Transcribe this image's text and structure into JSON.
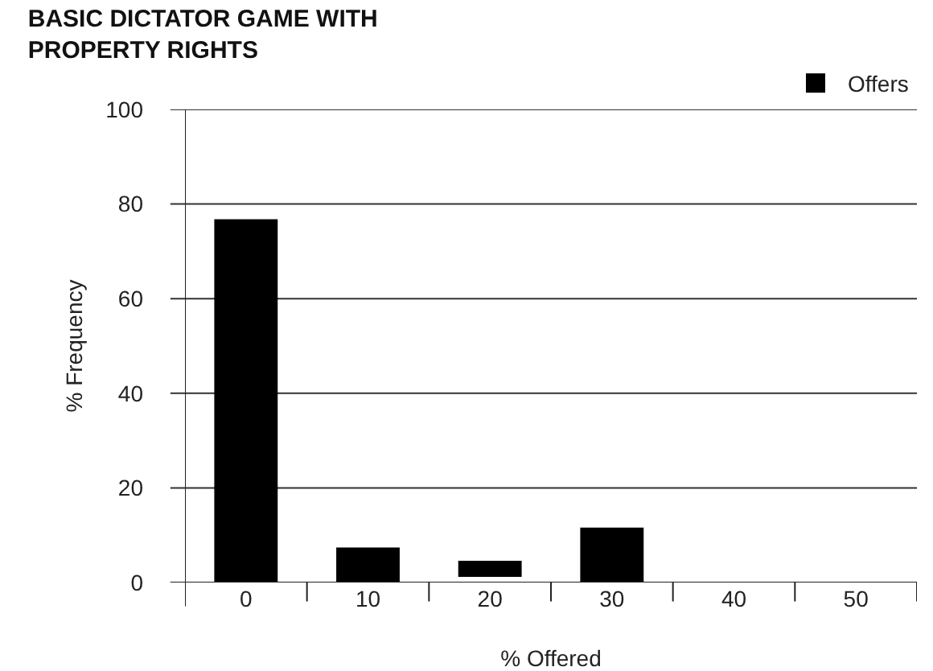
{
  "chart_data": {
    "type": "bar",
    "title": "BASIC DICTATOR GAME WITH\nPROPERTY RIGHTS",
    "xlabel": "% Offered",
    "ylabel": "% Frequency",
    "categories": [
      "0",
      "10",
      "20",
      "30",
      "40",
      "50"
    ],
    "series": [
      {
        "name": "Offers",
        "color": "#000000",
        "values": [
          76.8,
          7.4,
          3.4,
          11.6,
          null,
          null
        ],
        "base": [
          0,
          0,
          1.2,
          0,
          null,
          null
        ]
      }
    ],
    "ylim": [
      0,
      100
    ],
    "yticks": [
      0,
      20,
      40,
      60,
      80,
      100
    ],
    "grid": "y",
    "legend": "top right"
  }
}
